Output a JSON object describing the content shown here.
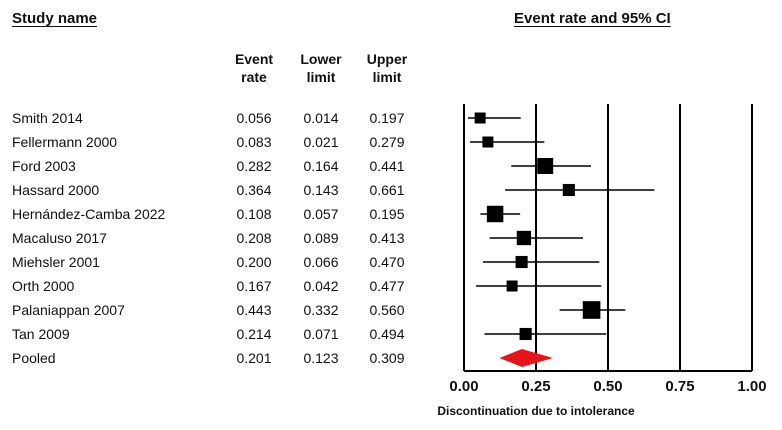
{
  "headers": {
    "study_name": "Study name",
    "chart_title": "Event rate and 95% CI",
    "col_event": [
      "Event",
      "rate"
    ],
    "col_lower": [
      "Lower",
      "limit"
    ],
    "col_upper": [
      "Upper",
      "limit"
    ]
  },
  "chart_data": {
    "type": "forest",
    "title": "Event rate and 95% CI",
    "xlabel": "Discontinuation due to intolerance",
    "xlim": [
      0,
      1
    ],
    "xticks": [
      "0.00",
      "0.25",
      "0.50",
      "0.75",
      "1.00"
    ],
    "xtick_values": [
      0,
      0.25,
      0.5,
      0.75,
      1.0
    ],
    "studies": [
      {
        "name": "Smith 2014",
        "rate": "0.056",
        "lower": "0.014",
        "upper": "0.197",
        "weight": 1.0
      },
      {
        "name": "Fellermann 2000",
        "rate": "0.083",
        "lower": "0.021",
        "upper": "0.279",
        "weight": 1.0
      },
      {
        "name": "Ford 2003",
        "rate": "0.282",
        "lower": "0.164",
        "upper": "0.441",
        "weight": 1.45
      },
      {
        "name": "Hassard 2000",
        "rate": "0.364",
        "lower": "0.143",
        "upper": "0.661",
        "weight": 1.1
      },
      {
        "name": "Hernández-Camba 2022",
        "rate": "0.108",
        "lower": "0.057",
        "upper": "0.195",
        "weight": 1.5
      },
      {
        "name": "Macaluso 2017",
        "rate": "0.208",
        "lower": "0.089",
        "upper": "0.413",
        "weight": 1.3
      },
      {
        "name": "Miehsler 2001",
        "rate": "0.200",
        "lower": "0.066",
        "upper": "0.470",
        "weight": 1.1
      },
      {
        "name": "Orth 2000",
        "rate": "0.167",
        "lower": "0.042",
        "upper": "0.477",
        "weight": 1.0
      },
      {
        "name": "Palaniappan 2007",
        "rate": "0.443",
        "lower": "0.332",
        "upper": "0.560",
        "weight": 1.6
      },
      {
        "name": "Tan 2009",
        "rate": "0.214",
        "lower": "0.071",
        "upper": "0.494",
        "weight": 1.1
      }
    ],
    "pooled": {
      "name": "Pooled",
      "rate": "0.201",
      "lower": "0.123",
      "upper": "0.309"
    },
    "colors": {
      "marker": "#000000",
      "pooled": "#e8141b",
      "line": "#000000"
    }
  }
}
